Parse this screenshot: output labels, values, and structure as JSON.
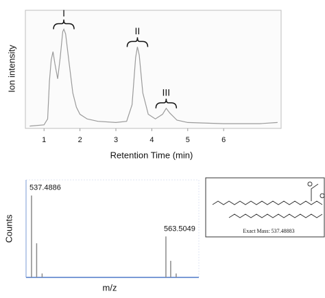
{
  "chart_data": [
    {
      "type": "line",
      "xlabel": "Retention Time (min)",
      "ylabel": "Ion intensity",
      "x": [
        0.6,
        1.0,
        1.1,
        1.15,
        1.2,
        1.25,
        1.3,
        1.38,
        1.45,
        1.52,
        1.55,
        1.6,
        1.7,
        1.8,
        1.9,
        2.0,
        2.2,
        2.5,
        3.0,
        3.3,
        3.45,
        3.55,
        3.6,
        3.65,
        3.75,
        3.9,
        4.1,
        4.3,
        4.4,
        4.5,
        4.7,
        5.0,
        6.0,
        7.0,
        7.5
      ],
      "values": [
        2,
        3,
        8,
        40,
        58,
        65,
        55,
        42,
        60,
        82,
        84,
        80,
        55,
        30,
        18,
        12,
        8,
        6,
        5,
        6,
        20,
        60,
        69,
        62,
        30,
        12,
        8,
        12,
        17,
        13,
        7,
        5,
        4,
        4,
        5
      ],
      "color": "#9a9a9a",
      "xlim": [
        0.48,
        7.6
      ],
      "ylim": [
        0,
        100
      ],
      "xticks": [
        1,
        2,
        3,
        4,
        5,
        6
      ],
      "annotations": [
        {
          "text": "I",
          "x": 1.55
        },
        {
          "text": "II",
          "x": 3.6
        },
        {
          "text": "III",
          "x": 4.4
        }
      ]
    },
    {
      "type": "stem",
      "xlabel": "m/z",
      "ylabel": "Counts",
      "x": [
        537.4886,
        538.48,
        539.54,
        563.5049,
        564.43,
        565.49
      ],
      "values": [
        84,
        35,
        4,
        42,
        17,
        4
      ],
      "color": "#8a8a8a",
      "xlim": [
        536.43,
        569.88
      ],
      "ylim": [
        0,
        100
      ],
      "labeled": [
        0,
        3
      ]
    }
  ],
  "structure": {
    "caption": "Exact Mass: 537.48883"
  }
}
